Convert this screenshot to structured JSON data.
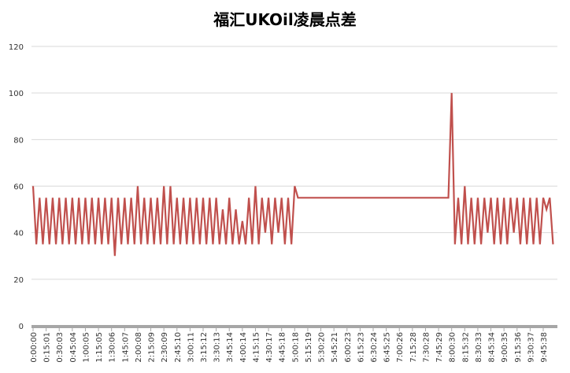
{
  "chart_data": {
    "type": "line",
    "title": "福汇UKOil凌晨点差",
    "categories": [
      "0:00:00",
      null,
      null,
      null,
      "0:15:01",
      null,
      null,
      null,
      "0:30:03",
      null,
      null,
      null,
      "0:45:04",
      null,
      null,
      null,
      "1:00:05",
      null,
      null,
      null,
      "1:15:05",
      null,
      null,
      null,
      "1:30:06",
      null,
      null,
      null,
      "1:45:07",
      null,
      null,
      null,
      "2:00:08",
      null,
      null,
      null,
      "2:15:09",
      null,
      null,
      null,
      "2:30:09",
      null,
      null,
      null,
      "2:45:10",
      null,
      null,
      null,
      "3:00:11",
      null,
      null,
      null,
      "3:15:12",
      null,
      null,
      null,
      "3:30:13",
      null,
      null,
      null,
      "3:45:14",
      null,
      null,
      null,
      "4:00:14",
      null,
      null,
      null,
      "4:15:15",
      null,
      null,
      null,
      "4:30:17",
      null,
      null,
      null,
      "4:45:18",
      null,
      null,
      null,
      "5:00:18",
      null,
      null,
      null,
      "5:15:19",
      null,
      null,
      null,
      "5:30:20",
      null,
      null,
      null,
      "5:45:21",
      null,
      null,
      null,
      "6:00:23",
      null,
      null,
      null,
      "6:15:23",
      null,
      null,
      null,
      "6:30:24",
      null,
      null,
      null,
      "6:45:25",
      null,
      null,
      null,
      "7:00:26",
      null,
      null,
      null,
      "7:15:28",
      null,
      null,
      null,
      "7:30:28",
      null,
      null,
      null,
      "7:45:29",
      null,
      null,
      null,
      "8:00:30",
      null,
      null,
      null,
      "8:15:32",
      null,
      null,
      null,
      "8:30:33",
      null,
      null,
      null,
      "8:45:34",
      null,
      null,
      null,
      "9:00:35",
      null,
      null,
      null,
      "9:15:36",
      null,
      null,
      null,
      "9:30:37",
      null,
      null,
      null,
      "9:45:38",
      null,
      null,
      null
    ],
    "series": [
      {
        "name": "UKOil",
        "color": "#c0504d",
        "values": [
          60,
          35,
          55,
          35,
          55,
          35,
          55,
          35,
          55,
          35,
          55,
          35,
          55,
          35,
          55,
          35,
          55,
          35,
          55,
          35,
          55,
          35,
          55,
          35,
          55,
          30,
          55,
          35,
          55,
          35,
          55,
          35,
          60,
          35,
          55,
          35,
          55,
          35,
          55,
          35,
          60,
          35,
          60,
          35,
          55,
          35,
          55,
          35,
          55,
          35,
          55,
          35,
          55,
          35,
          55,
          35,
          55,
          35,
          50,
          35,
          55,
          35,
          50,
          35,
          45,
          35,
          55,
          35,
          60,
          35,
          55,
          40,
          55,
          35,
          55,
          40,
          55,
          35,
          55,
          35,
          60,
          55,
          55,
          55,
          55,
          55,
          55,
          55,
          55,
          55,
          55,
          55,
          55,
          55,
          55,
          55,
          55,
          55,
          55,
          55,
          55,
          55,
          55,
          55,
          55,
          55,
          55,
          55,
          55,
          55,
          55,
          55,
          55,
          55,
          55,
          55,
          55,
          55,
          55,
          55,
          55,
          55,
          55,
          55,
          55,
          55,
          55,
          55,
          100,
          35,
          55,
          35,
          60,
          35,
          55,
          35,
          55,
          35,
          55,
          40,
          55,
          35,
          55,
          35,
          55,
          35,
          55,
          40,
          55,
          35,
          55,
          35,
          55,
          35,
          55,
          35,
          55,
          50,
          55,
          35
        ]
      }
    ],
    "ylim": [
      0,
      120
    ],
    "yticks": [
      0,
      20,
      40,
      60,
      80,
      100,
      120
    ],
    "grid": true
  }
}
